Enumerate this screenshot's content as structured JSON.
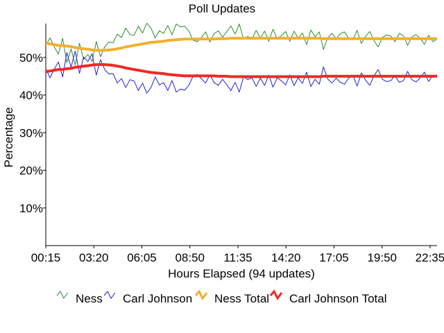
{
  "chart_data": {
    "type": "line",
    "title": "Poll Updates",
    "xlabel": "Hours Elapsed (94 updates)",
    "ylabel": "Percentage",
    "x_tick_labels": [
      "00:15",
      "03:20",
      "06:05",
      "08:50",
      "11:35",
      "14:20",
      "17:05",
      "19:50",
      "22:35"
    ],
    "y_tick_labels": [
      "10%",
      "20%",
      "30%",
      "40%",
      "50%"
    ],
    "y_ticks": [
      10,
      20,
      30,
      40,
      50
    ],
    "ylim": [
      0,
      59
    ],
    "x_count": 94,
    "grid": false,
    "legend_position": "bottom",
    "series": [
      {
        "name": "Ness",
        "color": "#2e8b2e",
        "values": [
          53.2,
          55.2,
          52.8,
          50.9,
          55.1,
          48.6,
          52.3,
          48.0,
          53.8,
          49.5,
          50.8,
          48.9,
          54.2,
          50.2,
          52.8,
          54.1,
          53.9,
          56.2,
          55.3,
          57.8,
          56.1,
          55.9,
          58.3,
          56.5,
          59.1,
          57.8,
          55.2,
          57.1,
          56.4,
          58.5,
          56.0,
          58.9,
          58.1,
          58.3,
          57.0,
          54.6,
          54.2,
          55.3,
          56.8,
          54.1,
          56.3,
          57.1,
          55.4,
          56.8,
          58.4,
          56.2,
          58.9,
          54.8,
          55.6,
          54.9,
          57.2,
          55.1,
          57.0,
          54.3,
          57.5,
          55.0,
          55.8,
          56.9,
          54.3,
          57.0,
          55.1,
          56.5,
          53.4,
          57.3,
          55.5,
          56.8,
          52.1,
          55.2,
          56.4,
          55.0,
          56.3,
          56.8,
          55.1,
          54.8,
          57.2,
          53.7,
          55.6,
          56.9,
          54.5,
          52.8,
          55.3,
          56.0,
          55.7,
          54.2,
          56.4,
          55.8,
          53.2,
          55.4,
          56.1,
          55.0,
          53.5,
          55.9,
          54.2,
          54.9
        ]
      },
      {
        "name": "Carl Johnson",
        "color": "#2020d0",
        "values": [
          47.0,
          44.6,
          46.9,
          48.8,
          44.8,
          51.3,
          47.4,
          51.7,
          45.8,
          50.1,
          48.9,
          51.0,
          45.3,
          49.4,
          46.8,
          45.6,
          45.7,
          43.2,
          44.4,
          42.0,
          44.1,
          43.7,
          41.2,
          43.2,
          40.5,
          42.0,
          44.8,
          42.7,
          43.3,
          41.2,
          43.9,
          40.8,
          41.6,
          41.3,
          42.6,
          45.0,
          45.5,
          44.3,
          43.2,
          45.4,
          43.3,
          42.6,
          44.2,
          42.8,
          41.2,
          43.4,
          40.8,
          44.9,
          44.1,
          44.6,
          42.3,
          44.5,
          42.6,
          45.3,
          42.1,
          44.6,
          43.8,
          42.7,
          45.4,
          42.5,
          44.6,
          43.1,
          46.1,
          42.3,
          44.2,
          42.9,
          47.5,
          44.3,
          43.2,
          44.5,
          43.4,
          42.9,
          44.5,
          45.2,
          42.4,
          45.9,
          44.0,
          42.6,
          45.1,
          46.8,
          44.2,
          43.6,
          43.8,
          45.2,
          43.4,
          43.8,
          46.3,
          44.1,
          43.5,
          44.6,
          46.1,
          43.6,
          45.3,
          44.7
        ]
      },
      {
        "name": "Ness Total",
        "color": "#f0b030",
        "values": [
          53.8,
          53.6,
          53.4,
          53.2,
          53.2,
          53.0,
          52.9,
          52.6,
          52.5,
          52.3,
          52.2,
          52.0,
          51.9,
          51.9,
          51.9,
          52.0,
          52.1,
          52.3,
          52.5,
          52.8,
          53.0,
          53.2,
          53.4,
          53.6,
          53.8,
          54.0,
          54.1,
          54.2,
          54.3,
          54.5,
          54.6,
          54.7,
          54.8,
          54.9,
          54.9,
          54.9,
          54.9,
          54.9,
          54.9,
          54.9,
          54.9,
          55.0,
          55.0,
          55.0,
          55.1,
          55.1,
          55.1,
          55.1,
          55.1,
          55.1,
          55.1,
          55.1,
          55.1,
          55.1,
          55.1,
          55.1,
          55.1,
          55.1,
          55.1,
          55.1,
          55.1,
          55.1,
          55.1,
          55.1,
          55.1,
          55.1,
          55.0,
          55.0,
          55.0,
          55.0,
          55.0,
          55.0,
          55.0,
          55.0,
          55.0,
          55.0,
          55.0,
          55.0,
          55.0,
          55.0,
          55.0,
          55.0,
          55.0,
          55.0,
          55.0,
          55.0,
          55.0,
          55.0,
          55.0,
          55.0,
          55.0,
          55.0,
          55.0,
          55.0
        ]
      },
      {
        "name": "Carl Johnson Total",
        "color": "#f02828",
        "values": [
          46.2,
          46.4,
          46.6,
          46.8,
          46.8,
          47.0,
          47.1,
          47.4,
          47.5,
          47.7,
          47.8,
          48.0,
          48.1,
          48.1,
          48.1,
          48.0,
          47.9,
          47.7,
          47.5,
          47.2,
          47.0,
          46.8,
          46.6,
          46.4,
          46.2,
          46.0,
          45.9,
          45.8,
          45.7,
          45.5,
          45.4,
          45.3,
          45.2,
          45.1,
          45.1,
          45.1,
          45.1,
          45.1,
          45.1,
          45.1,
          45.1,
          45.0,
          45.0,
          45.0,
          44.9,
          44.9,
          44.9,
          44.9,
          44.9,
          44.9,
          44.9,
          44.9,
          44.9,
          44.9,
          44.9,
          44.9,
          44.9,
          44.9,
          44.9,
          44.9,
          44.9,
          44.9,
          44.9,
          44.9,
          44.9,
          44.9,
          45.0,
          45.0,
          45.0,
          45.0,
          45.0,
          45.0,
          45.0,
          45.0,
          45.0,
          45.0,
          45.0,
          45.0,
          45.0,
          45.0,
          45.0,
          45.0,
          45.0,
          45.0,
          45.0,
          45.0,
          45.0,
          45.0,
          45.0,
          45.0,
          45.0,
          45.0,
          45.0,
          45.0
        ]
      }
    ]
  }
}
